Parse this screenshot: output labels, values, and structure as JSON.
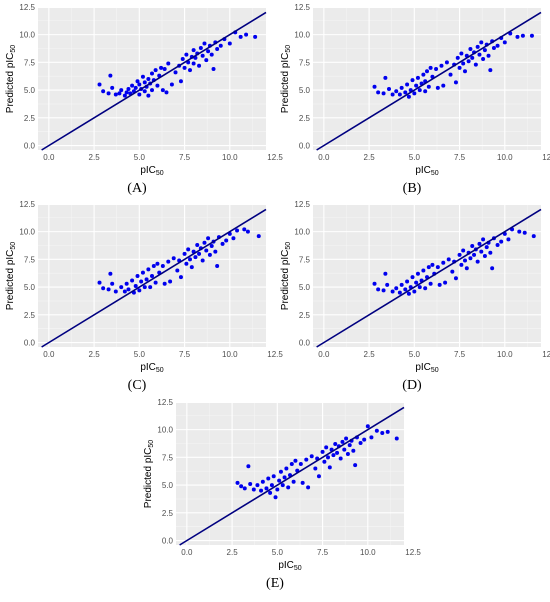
{
  "chart_data": [
    {
      "label": "(A)",
      "type": "scatter",
      "xlabel": "pIC50",
      "ylabel": "Predicted pIC50",
      "xlim": [
        -0.6,
        12.0
      ],
      "ylim": [
        -0.4,
        12.4
      ],
      "xticks": [
        "0.0",
        "2.5",
        "5.0",
        "7.5",
        "10.0",
        "12.5"
      ],
      "yticks": [
        "0.0",
        "2.5",
        "5.0",
        "7.5",
        "10.0",
        "12.5"
      ],
      "point_color": "#0000ee",
      "line_color": "#000080",
      "identity_line": true,
      "grid": true,
      "points": [
        [
          2.8,
          5.5
        ],
        [
          3.0,
          4.9
        ],
        [
          3.3,
          4.7
        ],
        [
          3.4,
          6.3
        ],
        [
          3.5,
          5.2
        ],
        [
          3.7,
          4.6
        ],
        [
          3.9,
          4.7
        ],
        [
          4.0,
          5.0
        ],
        [
          4.2,
          4.5
        ],
        [
          4.3,
          4.8
        ],
        [
          4.4,
          5.1
        ],
        [
          4.5,
          4.7
        ],
        [
          4.6,
          5.4
        ],
        [
          4.7,
          4.9
        ],
        [
          4.8,
          5.2
        ],
        [
          4.9,
          5.8
        ],
        [
          5.0,
          4.6
        ],
        [
          5.0,
          5.5
        ],
        [
          5.1,
          5.1
        ],
        [
          5.2,
          6.2
        ],
        [
          5.3,
          4.9
        ],
        [
          5.3,
          5.7
        ],
        [
          5.4,
          5.3
        ],
        [
          5.5,
          6.0
        ],
        [
          5.5,
          4.5
        ],
        [
          5.6,
          5.6
        ],
        [
          5.7,
          6.5
        ],
        [
          5.7,
          5.0
        ],
        [
          5.8,
          5.9
        ],
        [
          5.9,
          6.8
        ],
        [
          6.0,
          5.4
        ],
        [
          6.1,
          6.3
        ],
        [
          6.2,
          7.0
        ],
        [
          6.3,
          5.0
        ],
        [
          6.4,
          6.9
        ],
        [
          6.5,
          4.8
        ],
        [
          6.6,
          7.4
        ],
        [
          6.8,
          5.5
        ],
        [
          7.0,
          6.6
        ],
        [
          7.2,
          7.2
        ],
        [
          7.3,
          5.8
        ],
        [
          7.4,
          7.8
        ],
        [
          7.5,
          7.0
        ],
        [
          7.6,
          8.2
        ],
        [
          7.7,
          7.5
        ],
        [
          7.8,
          6.8
        ],
        [
          7.9,
          8.0
        ],
        [
          8.0,
          7.4
        ],
        [
          8.0,
          8.6
        ],
        [
          8.1,
          7.9
        ],
        [
          8.2,
          8.3
        ],
        [
          8.3,
          7.2
        ],
        [
          8.4,
          8.8
        ],
        [
          8.5,
          8.1
        ],
        [
          8.6,
          9.2
        ],
        [
          8.7,
          7.7
        ],
        [
          8.8,
          8.5
        ],
        [
          8.9,
          9.0
        ],
        [
          9.0,
          8.2
        ],
        [
          9.1,
          6.9
        ],
        [
          9.2,
          9.3
        ],
        [
          9.3,
          8.7
        ],
        [
          9.5,
          9.0
        ],
        [
          9.7,
          9.6
        ],
        [
          10.0,
          9.2
        ],
        [
          10.3,
          10.2
        ],
        [
          10.6,
          9.8
        ],
        [
          10.9,
          10.0
        ],
        [
          11.4,
          9.8
        ]
      ]
    },
    {
      "label": "(B)",
      "type": "scatter",
      "xlabel": "pIC50",
      "ylabel": "Predicted pIC50",
      "xlim": [
        -0.6,
        12.0
      ],
      "ylim": [
        -0.4,
        12.4
      ],
      "xticks": [
        "0.0",
        "2.5",
        "5.0",
        "7.5",
        "10.0",
        "12.5"
      ],
      "yticks": [
        "0.0",
        "2.5",
        "5.0",
        "7.5",
        "10.0",
        "12.5"
      ],
      "point_color": "#0000ee",
      "line_color": "#000080",
      "identity_line": true,
      "grid": true,
      "points": [
        [
          2.8,
          5.3
        ],
        [
          3.0,
          4.8
        ],
        [
          3.3,
          4.7
        ],
        [
          3.4,
          6.1
        ],
        [
          3.6,
          5.1
        ],
        [
          3.8,
          4.6
        ],
        [
          4.0,
          4.9
        ],
        [
          4.2,
          4.6
        ],
        [
          4.3,
          5.2
        ],
        [
          4.5,
          4.8
        ],
        [
          4.6,
          5.5
        ],
        [
          4.7,
          4.4
        ],
        [
          4.8,
          5.0
        ],
        [
          4.9,
          5.9
        ],
        [
          5.0,
          4.7
        ],
        [
          5.1,
          5.4
        ],
        [
          5.2,
          6.1
        ],
        [
          5.3,
          5.0
        ],
        [
          5.4,
          5.6
        ],
        [
          5.5,
          6.4
        ],
        [
          5.6,
          4.9
        ],
        [
          5.6,
          5.8
        ],
        [
          5.7,
          6.7
        ],
        [
          5.8,
          5.3
        ],
        [
          5.9,
          7.0
        ],
        [
          6.0,
          6.2
        ],
        [
          6.2,
          6.9
        ],
        [
          6.3,
          5.2
        ],
        [
          6.5,
          7.2
        ],
        [
          6.6,
          5.4
        ],
        [
          6.8,
          7.5
        ],
        [
          7.0,
          6.4
        ],
        [
          7.2,
          7.3
        ],
        [
          7.3,
          5.7
        ],
        [
          7.4,
          7.9
        ],
        [
          7.5,
          7.0
        ],
        [
          7.6,
          8.3
        ],
        [
          7.7,
          7.4
        ],
        [
          7.8,
          6.7
        ],
        [
          7.9,
          8.1
        ],
        [
          8.0,
          7.6
        ],
        [
          8.1,
          8.7
        ],
        [
          8.2,
          7.9
        ],
        [
          8.3,
          8.4
        ],
        [
          8.4,
          7.3
        ],
        [
          8.5,
          8.9
        ],
        [
          8.6,
          8.2
        ],
        [
          8.7,
          9.3
        ],
        [
          8.8,
          7.8
        ],
        [
          8.9,
          8.6
        ],
        [
          9.0,
          9.1
        ],
        [
          9.1,
          8.1
        ],
        [
          9.2,
          6.8
        ],
        [
          9.3,
          9.4
        ],
        [
          9.4,
          8.8
        ],
        [
          9.6,
          9.0
        ],
        [
          9.8,
          9.7
        ],
        [
          10.0,
          9.3
        ],
        [
          10.3,
          10.1
        ],
        [
          10.7,
          9.8
        ],
        [
          11.0,
          9.9
        ],
        [
          11.5,
          9.9
        ]
      ]
    },
    {
      "label": "(C)",
      "type": "scatter",
      "xlabel": "pIC50",
      "ylabel": "Predicted pIC50",
      "xlim": [
        -0.6,
        12.0
      ],
      "ylim": [
        -0.4,
        12.4
      ],
      "xticks": [
        "0.0",
        "2.5",
        "5.0",
        "7.5",
        "10.0",
        "12.5"
      ],
      "yticks": [
        "0.0",
        "2.5",
        "5.0",
        "7.5",
        "10.0",
        "12.5"
      ],
      "point_color": "#0000ee",
      "line_color": "#000080",
      "identity_line": true,
      "grid": true,
      "points": [
        [
          2.8,
          5.4
        ],
        [
          3.0,
          4.9
        ],
        [
          3.3,
          4.8
        ],
        [
          3.4,
          6.2
        ],
        [
          3.5,
          5.3
        ],
        [
          3.7,
          4.6
        ],
        [
          4.0,
          5.0
        ],
        [
          4.2,
          4.6
        ],
        [
          4.3,
          5.3
        ],
        [
          4.4,
          4.8
        ],
        [
          4.6,
          5.6
        ],
        [
          4.7,
          4.5
        ],
        [
          4.8,
          5.1
        ],
        [
          4.9,
          6.0
        ],
        [
          5.0,
          4.7
        ],
        [
          5.1,
          5.5
        ],
        [
          5.2,
          6.3
        ],
        [
          5.3,
          5.0
        ],
        [
          5.4,
          5.7
        ],
        [
          5.5,
          6.6
        ],
        [
          5.6,
          5.0
        ],
        [
          5.7,
          6.0
        ],
        [
          5.8,
          6.9
        ],
        [
          5.9,
          5.4
        ],
        [
          6.0,
          7.1
        ],
        [
          6.1,
          6.3
        ],
        [
          6.3,
          6.9
        ],
        [
          6.4,
          5.3
        ],
        [
          6.6,
          7.3
        ],
        [
          6.7,
          5.5
        ],
        [
          6.9,
          7.6
        ],
        [
          7.1,
          6.5
        ],
        [
          7.2,
          7.4
        ],
        [
          7.3,
          5.9
        ],
        [
          7.5,
          8.0
        ],
        [
          7.6,
          7.1
        ],
        [
          7.7,
          8.4
        ],
        [
          7.8,
          7.5
        ],
        [
          7.9,
          6.8
        ],
        [
          8.0,
          8.2
        ],
        [
          8.1,
          7.7
        ],
        [
          8.2,
          8.8
        ],
        [
          8.3,
          8.0
        ],
        [
          8.4,
          8.5
        ],
        [
          8.5,
          7.4
        ],
        [
          8.6,
          9.0
        ],
        [
          8.7,
          8.3
        ],
        [
          8.8,
          9.4
        ],
        [
          8.9,
          7.9
        ],
        [
          9.0,
          8.7
        ],
        [
          9.1,
          9.1
        ],
        [
          9.2,
          8.2
        ],
        [
          9.3,
          6.9
        ],
        [
          9.4,
          9.5
        ],
        [
          9.6,
          8.9
        ],
        [
          9.8,
          9.2
        ],
        [
          10.0,
          9.8
        ],
        [
          10.2,
          9.4
        ],
        [
          10.4,
          10.1
        ],
        [
          10.8,
          10.2
        ],
        [
          11.0,
          10.0
        ],
        [
          11.6,
          9.6
        ]
      ]
    },
    {
      "label": "(D)",
      "type": "scatter",
      "xlabel": "pIC50",
      "ylabel": "Predicted pIC50",
      "xlim": [
        -0.6,
        12.0
      ],
      "ylim": [
        -0.4,
        12.4
      ],
      "xticks": [
        "0.0",
        "2.5",
        "5.0",
        "7.5",
        "10.0",
        "12.5"
      ],
      "yticks": [
        "0.0",
        "2.5",
        "5.0",
        "7.5",
        "10.0",
        "12.5"
      ],
      "point_color": "#0000ee",
      "line_color": "#000080",
      "identity_line": true,
      "grid": true,
      "points": [
        [
          2.8,
          5.3
        ],
        [
          3.0,
          4.8
        ],
        [
          3.3,
          4.7
        ],
        [
          3.4,
          6.2
        ],
        [
          3.5,
          5.2
        ],
        [
          3.8,
          4.6
        ],
        [
          4.0,
          4.9
        ],
        [
          4.2,
          4.5
        ],
        [
          4.3,
          5.2
        ],
        [
          4.5,
          4.8
        ],
        [
          4.6,
          5.5
        ],
        [
          4.7,
          4.4
        ],
        [
          4.8,
          5.0
        ],
        [
          4.9,
          5.9
        ],
        [
          5.0,
          4.6
        ],
        [
          5.1,
          5.4
        ],
        [
          5.2,
          6.2
        ],
        [
          5.3,
          5.0
        ],
        [
          5.4,
          5.6
        ],
        [
          5.5,
          6.5
        ],
        [
          5.6,
          4.9
        ],
        [
          5.7,
          5.9
        ],
        [
          5.8,
          6.8
        ],
        [
          5.9,
          5.3
        ],
        [
          6.0,
          7.0
        ],
        [
          6.1,
          6.2
        ],
        [
          6.3,
          6.8
        ],
        [
          6.4,
          5.2
        ],
        [
          6.6,
          7.2
        ],
        [
          6.7,
          5.4
        ],
        [
          6.9,
          7.5
        ],
        [
          7.1,
          6.4
        ],
        [
          7.2,
          7.3
        ],
        [
          7.3,
          5.8
        ],
        [
          7.5,
          7.9
        ],
        [
          7.6,
          7.0
        ],
        [
          7.7,
          8.3
        ],
        [
          7.8,
          7.4
        ],
        [
          7.9,
          6.7
        ],
        [
          8.0,
          8.1
        ],
        [
          8.1,
          7.6
        ],
        [
          8.2,
          8.7
        ],
        [
          8.3,
          7.9
        ],
        [
          8.4,
          8.4
        ],
        [
          8.5,
          7.3
        ],
        [
          8.6,
          8.9
        ],
        [
          8.7,
          8.2
        ],
        [
          8.8,
          9.3
        ],
        [
          8.9,
          7.8
        ],
        [
          9.0,
          8.6
        ],
        [
          9.1,
          9.0
        ],
        [
          9.2,
          8.1
        ],
        [
          9.3,
          6.7
        ],
        [
          9.4,
          9.4
        ],
        [
          9.6,
          8.8
        ],
        [
          9.8,
          9.1
        ],
        [
          10.0,
          9.8
        ],
        [
          10.2,
          9.3
        ],
        [
          10.4,
          10.2
        ],
        [
          10.8,
          10.0
        ],
        [
          11.1,
          9.9
        ],
        [
          11.6,
          9.6
        ]
      ]
    },
    {
      "label": "(E)",
      "type": "scatter",
      "xlabel": "pIC50",
      "ylabel": "Predicted pIC50",
      "xlim": [
        -0.6,
        12.0
      ],
      "ylim": [
        -0.4,
        12.4
      ],
      "xticks": [
        "0.0",
        "2.5",
        "5.0",
        "7.5",
        "10.0",
        "12.5"
      ],
      "yticks": [
        "0.0",
        "2.5",
        "5.0",
        "7.5",
        "10.0",
        "12.5"
      ],
      "point_color": "#0000ee",
      "line_color": "#000080",
      "identity_line": true,
      "grid": true,
      "points": [
        [
          2.8,
          5.2
        ],
        [
          3.0,
          4.9
        ],
        [
          3.2,
          4.7
        ],
        [
          3.4,
          6.7
        ],
        [
          3.5,
          5.1
        ],
        [
          3.7,
          4.6
        ],
        [
          3.9,
          5.0
        ],
        [
          4.1,
          4.5
        ],
        [
          4.2,
          5.3
        ],
        [
          4.4,
          4.7
        ],
        [
          4.5,
          5.6
        ],
        [
          4.6,
          4.3
        ],
        [
          4.7,
          5.0
        ],
        [
          4.8,
          5.8
        ],
        [
          4.9,
          3.9
        ],
        [
          5.0,
          4.6
        ],
        [
          5.1,
          5.4
        ],
        [
          5.2,
          6.2
        ],
        [
          5.3,
          5.0
        ],
        [
          5.4,
          5.7
        ],
        [
          5.5,
          6.5
        ],
        [
          5.6,
          4.8
        ],
        [
          5.7,
          5.9
        ],
        [
          5.8,
          6.9
        ],
        [
          5.9,
          5.3
        ],
        [
          6.0,
          7.2
        ],
        [
          6.1,
          6.3
        ],
        [
          6.3,
          6.9
        ],
        [
          6.4,
          5.2
        ],
        [
          6.6,
          7.3
        ],
        [
          6.7,
          4.8
        ],
        [
          6.9,
          7.6
        ],
        [
          7.1,
          6.5
        ],
        [
          7.2,
          7.4
        ],
        [
          7.3,
          5.8
        ],
        [
          7.5,
          8.0
        ],
        [
          7.6,
          7.1
        ],
        [
          7.7,
          8.4
        ],
        [
          7.8,
          7.5
        ],
        [
          7.9,
          6.6
        ],
        [
          8.0,
          8.2
        ],
        [
          8.1,
          7.7
        ],
        [
          8.2,
          8.7
        ],
        [
          8.3,
          7.9
        ],
        [
          8.4,
          8.5
        ],
        [
          8.5,
          7.4
        ],
        [
          8.6,
          8.9
        ],
        [
          8.7,
          8.2
        ],
        [
          8.8,
          9.2
        ],
        [
          8.9,
          7.8
        ],
        [
          9.0,
          8.6
        ],
        [
          9.1,
          9.0
        ],
        [
          9.2,
          8.1
        ],
        [
          9.3,
          6.8
        ],
        [
          9.4,
          9.3
        ],
        [
          9.6,
          8.8
        ],
        [
          9.8,
          9.1
        ],
        [
          10.0,
          10.3
        ],
        [
          10.2,
          9.3
        ],
        [
          10.5,
          9.9
        ],
        [
          10.8,
          9.7
        ],
        [
          11.1,
          9.8
        ],
        [
          11.6,
          9.2
        ]
      ]
    }
  ]
}
